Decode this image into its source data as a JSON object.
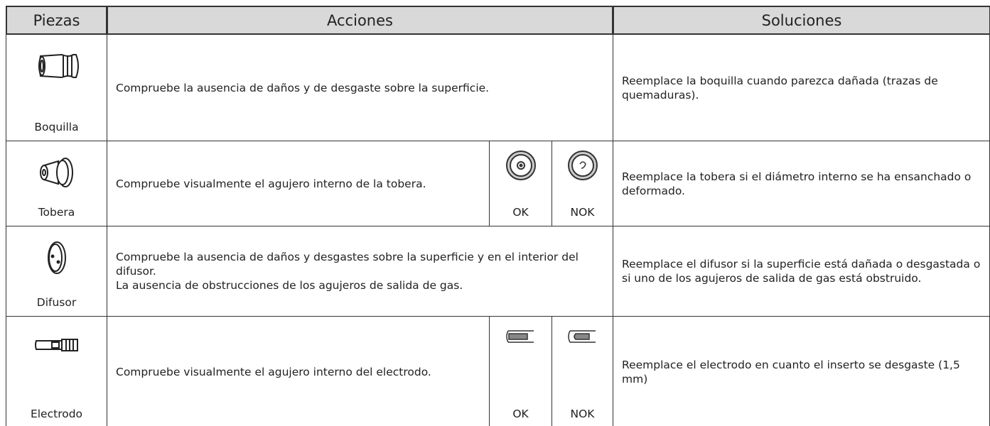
{
  "table": {
    "header": [
      "Piezas",
      "Acciones",
      "Soluciones"
    ],
    "rows": [
      {
        "part": "Boquilla",
        "action": [
          "Compruebe la ausencia de daños y de desgaste sobre la superficie."
        ],
        "solution": "Reemplace la boquilla cuando parezca dañada (trazas de quemaduras)."
      },
      {
        "part": "Tobera",
        "action": [
          "Compruebe visualmente el agujero interno de la tobera."
        ],
        "checks": [
          "OK",
          "NOK"
        ],
        "solution": "Reemplace la tobera si el diámetro interno se ha ensanchado o deformado."
      },
      {
        "part": "Difusor",
        "action": [
          "Compruebe la ausencia de daños y desgastes sobre la superficie y en el interior del difusor.",
          "La ausencia de obstrucciones de los agujeros de salida de gas."
        ],
        "solution": "Reemplace el difusor si la superficie está dañada o desgastada o si uno de los agujeros de salida de gas está obstruido."
      },
      {
        "part": "Electrodo",
        "action": [
          "Compruebe visualmente el agujero interno del electrodo."
        ],
        "checks": [
          "OK",
          "NOK"
        ],
        "solution": "Reemplace el electrodo en cuanto el inserto se desgaste (1,5 mm)"
      }
    ]
  }
}
